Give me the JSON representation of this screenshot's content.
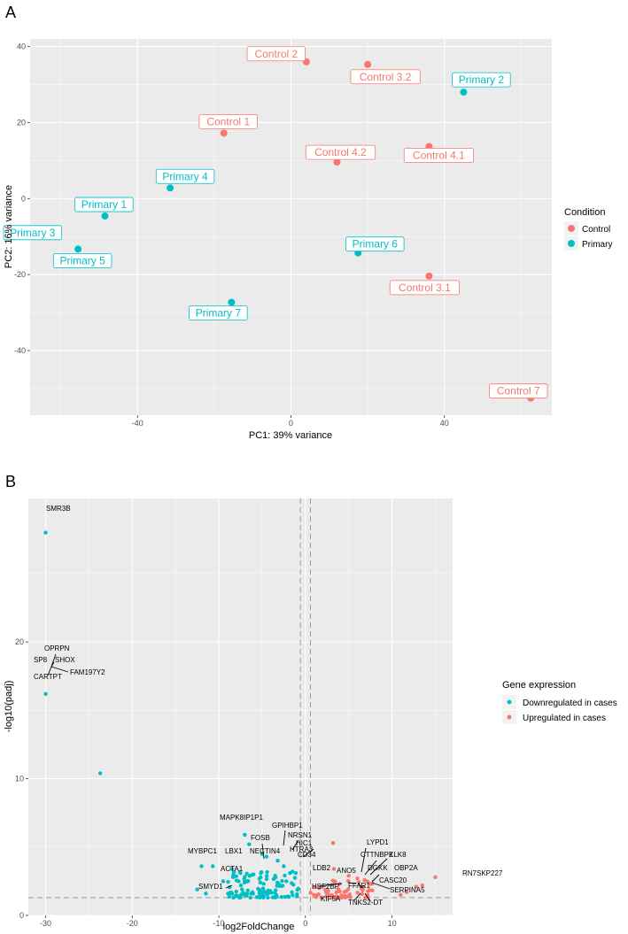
{
  "panels": {
    "a": "A",
    "b": "B"
  },
  "colors": {
    "control": "#F8766D",
    "primary": "#00BFC4",
    "panel_bg": "#EBEBEB",
    "grid": "#FFFFFF"
  },
  "chart_data": [
    {
      "type": "scatter",
      "panel": "A",
      "xlabel": "PC1: 39% variance",
      "ylabel": "PC2: 16% variance",
      "xlim": [
        -68,
        68
      ],
      "ylim": [
        -57,
        42
      ],
      "xticks": [
        -40,
        0,
        40
      ],
      "yticks": [
        40,
        20,
        0,
        -20,
        -40
      ],
      "legend": {
        "title": "Condition",
        "position": "right",
        "entries": [
          {
            "label": "Control",
            "group": "control"
          },
          {
            "label": "Primary",
            "group": "primary"
          }
        ]
      },
      "points": [
        {
          "name": "Control 2",
          "group": "control",
          "x": 4,
          "y": 36
        },
        {
          "name": "Control 3.2",
          "group": "control",
          "x": 20,
          "y": 35.3
        },
        {
          "name": "Primary 2",
          "group": "primary",
          "x": 45,
          "y": 28
        },
        {
          "name": "Control 1",
          "group": "control",
          "x": -17.5,
          "y": 17.2
        },
        {
          "name": "Control 4.2",
          "group": "control",
          "x": 12,
          "y": 9.6
        },
        {
          "name": "Control 4.1",
          "group": "control",
          "x": 36,
          "y": 13.7
        },
        {
          "name": "Primary 4",
          "group": "primary",
          "x": -31.5,
          "y": 2.8
        },
        {
          "name": "Primary 1",
          "group": "primary",
          "x": -48.5,
          "y": -4.6
        },
        {
          "name": "Primary 3",
          "group": "primary",
          "x": -62.5,
          "y": -8.5
        },
        {
          "name": "Primary 5",
          "group": "primary",
          "x": -55.5,
          "y": -13.3
        },
        {
          "name": "Primary 6",
          "group": "primary",
          "x": 17.5,
          "y": -14.3
        },
        {
          "name": "Control 3.1",
          "group": "control",
          "x": 36,
          "y": -20.4
        },
        {
          "name": "Primary 7",
          "group": "primary",
          "x": -15.5,
          "y": -27.3
        },
        {
          "name": "Control 7",
          "group": "control",
          "x": 62.5,
          "y": -52.5
        }
      ]
    },
    {
      "type": "scatter",
      "panel": "B",
      "xlabel": "log2FoldChange",
      "ylabel": "-log10(padj)",
      "xlim": [
        -32,
        17
      ],
      "ylim": [
        0,
        30.5
      ],
      "xticks": [
        -30,
        -20,
        -10,
        0,
        10
      ],
      "yticks": [
        0,
        10,
        20
      ],
      "vlines": [
        -0.58,
        0.58
      ],
      "hline": 1.3,
      "legend": {
        "title": "Gene expression",
        "position": "right",
        "entries": [
          {
            "label": "Downregulated in cases",
            "group": "down"
          },
          {
            "label": "Upregulated in cases",
            "group": "up"
          }
        ]
      },
      "points": [
        {
          "x": -30,
          "y": 28,
          "group": "down"
        },
        {
          "x": -30,
          "y": 16.2,
          "group": "down"
        },
        {
          "x": -23.7,
          "y": 10.4,
          "group": "down"
        },
        {
          "x": -7,
          "y": 5.9,
          "group": "down"
        },
        {
          "x": -6.5,
          "y": 5.2,
          "group": "down"
        },
        {
          "x": -5,
          "y": 4.5,
          "group": "down"
        },
        {
          "x": -4.5,
          "y": 4.3,
          "group": "down"
        },
        {
          "x": -3.2,
          "y": 4.0,
          "group": "down"
        },
        {
          "x": -2.5,
          "y": 3.6,
          "group": "down"
        },
        {
          "x": -1.5,
          "y": 3.2,
          "group": "down"
        },
        {
          "x": -7.5,
          "y": 3.1,
          "group": "down"
        },
        {
          "x": -12,
          "y": 3.6,
          "group": "down"
        },
        {
          "x": -10.7,
          "y": 3.6,
          "group": "down"
        },
        {
          "x": -8.5,
          "y": 3.4,
          "group": "down"
        },
        {
          "x": -9.5,
          "y": 2.5,
          "group": "down"
        },
        {
          "x": -12.5,
          "y": 1.9,
          "group": "down"
        },
        {
          "x": -11.5,
          "y": 1.6,
          "group": "down"
        },
        {
          "x": -6,
          "y": 3.0,
          "group": "down"
        },
        {
          "x": -3.5,
          "y": 2.9,
          "group": "down"
        },
        {
          "x": -2.2,
          "y": 2.5,
          "group": "down"
        },
        {
          "x": 3.2,
          "y": 5.3,
          "group": "up"
        },
        {
          "x": 3.3,
          "y": 3.4,
          "group": "up"
        },
        {
          "x": 5,
          "y": 2.9,
          "group": "up"
        },
        {
          "x": 6,
          "y": 2.7,
          "group": "up"
        },
        {
          "x": 11,
          "y": 1.5,
          "group": "up"
        },
        {
          "x": 11.7,
          "y": 1.7,
          "group": "up"
        },
        {
          "x": 12.8,
          "y": 2.1,
          "group": "up"
        },
        {
          "x": 13.5,
          "y": 2.2,
          "group": "up"
        },
        {
          "x": 15,
          "y": 2.8,
          "group": "up"
        },
        {
          "x": 7.5,
          "y": 2.3,
          "group": "up"
        }
      ],
      "down_cluster": {
        "x_range": [
          -9,
          -0.6
        ],
        "y_range": [
          1.3,
          3.2
        ],
        "count": 110
      },
      "up_cluster": {
        "x_range": [
          0.6,
          8
        ],
        "y_range": [
          1.3,
          2.6
        ],
        "count": 60
      },
      "gene_labels": [
        "SMR3B",
        "OPRPN",
        "SP8",
        "SHOX",
        "CARTPT",
        "FAM197Y2",
        "MAPK8IP1P1",
        "GPIHBP1",
        "NRSN1",
        "FOSB",
        "NECTIN4",
        "HTRA3",
        "HIC1",
        "CD34",
        "MYBPC1",
        "LBX1",
        "ACTA1",
        "SMYD1",
        "LDB2",
        "LYPD1",
        "CTTNBP2",
        "KLK8",
        "DGKK",
        "OBP2A",
        "ANO5",
        "CASC20",
        "HSF2BP",
        "FFAR1",
        "SERPINA5",
        "KIF5A",
        "TNKS2-DT",
        "RN7SKP227"
      ]
    }
  ]
}
